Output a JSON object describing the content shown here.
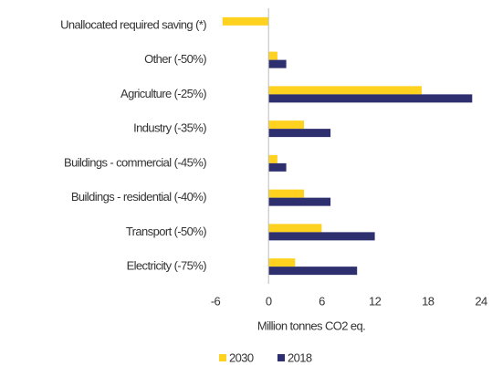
{
  "chart_data": {
    "type": "hbar",
    "categories": [
      "Unallocated required saving (*)",
      "Other (-50%)",
      "Agriculture (-25%)",
      "Industry (-35%)",
      "Buildings - commercial (-45%)",
      "Buildings - residential (-40%)",
      "Transport (-50%)",
      "Electricity (-75%)"
    ],
    "series": [
      {
        "name": "2030",
        "color": "#ffd21f",
        "values": [
          -5.2,
          1,
          17.3,
          4,
          1,
          4,
          6,
          3
        ]
      },
      {
        "name": "2018",
        "color": "#2e2f6e",
        "values": [
          null,
          2,
          23,
          7,
          2,
          7,
          12,
          10
        ]
      }
    ],
    "xlim": [
      -6,
      24
    ],
    "xticks": [
      -6,
      0,
      6,
      12,
      18,
      24
    ],
    "x_label": "Million tonnes CO2 eq.",
    "legend": "bottom"
  }
}
